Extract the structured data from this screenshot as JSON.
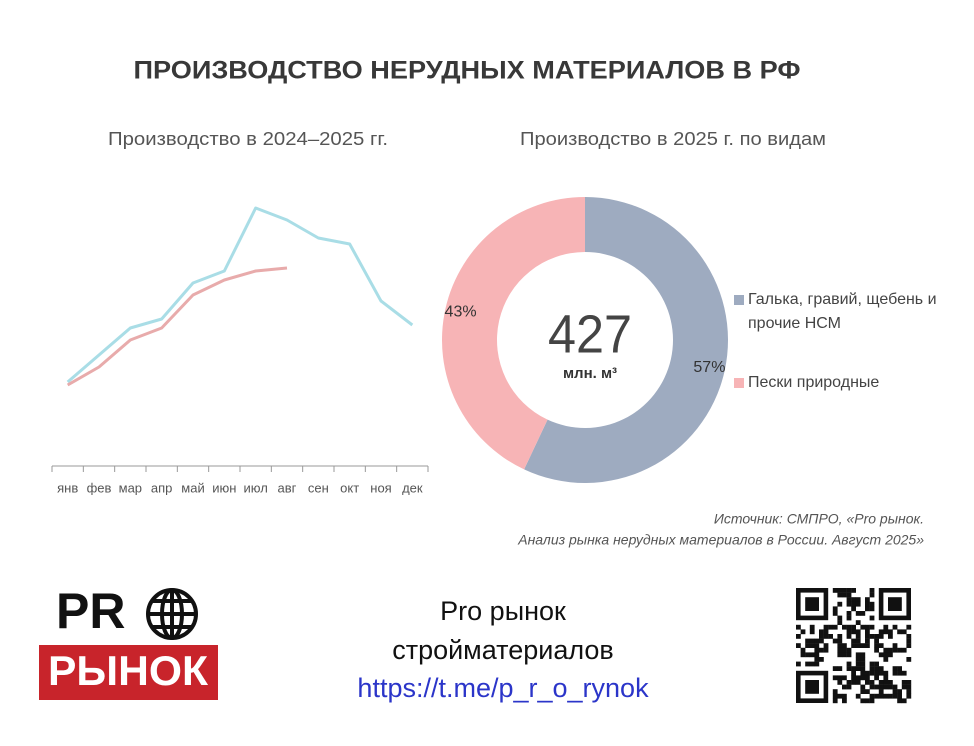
{
  "title": "ПРОИЗВОДСТВО НЕРУДНЫХ МАТЕРИАЛОВ В РФ",
  "chart_data": [
    {
      "type": "line",
      "title": "Производство в 2024–2025 гг.",
      "categories": [
        "янв",
        "фев",
        "мар",
        "апр",
        "май",
        "июн",
        "июл",
        "авг",
        "сен",
        "окт",
        "ноя",
        "дек"
      ],
      "series": [
        {
          "color": "#a9dde6",
          "values": [
            28,
            37,
            46,
            49,
            61,
            65,
            86,
            82,
            76,
            74,
            55,
            47
          ]
        },
        {
          "color": "#e8abab",
          "values": [
            27,
            33,
            42,
            46,
            57,
            62,
            65,
            66,
            null,
            null,
            null,
            null
          ]
        }
      ],
      "ylim": [
        0,
        100
      ]
    },
    {
      "type": "pie",
      "title": "Производство в 2025 г. по видам",
      "categories": [
        "Галька, гравий, щебень и прочие НСМ",
        "Пески природные"
      ],
      "values": [
        57,
        43
      ],
      "value_labels": [
        "57%",
        "43%"
      ],
      "colors": [
        "#9eabc0",
        "#f7b4b6"
      ],
      "total": 427,
      "total_label": "млн. м³",
      "legend": "right"
    }
  ],
  "source": [
    "Источник: СМПРО, «Pro рынок.",
    "Анализ рынка нерудных материалов в России. Август 2025»"
  ],
  "footer": {
    "logo": [
      "PR",
      "РЫНОК"
    ],
    "text": [
      "Pro рынок",
      "стройматериалов"
    ],
    "link": "https://t.me/p_r_o_rynok"
  }
}
